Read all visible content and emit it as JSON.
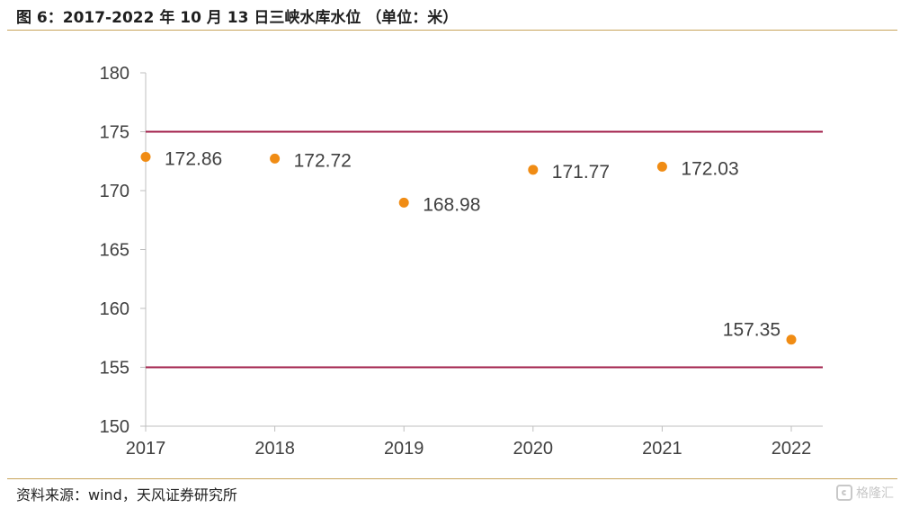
{
  "header": {
    "title": "图 6：2017-2022 年 10 月 13 日三峡水库水位 （单位：米）"
  },
  "footer": {
    "source": "资料来源：wind，天风证券研究所"
  },
  "watermark": {
    "text": "格隆汇"
  },
  "colors": {
    "accent_rule": "#c8a45a",
    "point": "#f08c14",
    "reference_line": "#a11f4a",
    "axis": "#bfbfbf",
    "text": "#404040"
  },
  "chart_data": {
    "type": "scatter",
    "title": "",
    "xlabel": "",
    "ylabel": "",
    "x": [
      "2017",
      "2018",
      "2019",
      "2020",
      "2021",
      "2022"
    ],
    "values": [
      172.86,
      172.72,
      168.98,
      171.77,
      172.03,
      157.35
    ],
    "data_labels": [
      "172.86",
      "172.72",
      "168.98",
      "171.77",
      "172.03",
      "157.35"
    ],
    "ylim": [
      150,
      180
    ],
    "yticks": [
      "150",
      "155",
      "160",
      "165",
      "170",
      "175",
      "180"
    ],
    "reference_lines": [
      175,
      155
    ],
    "grid": false,
    "legend": "none"
  }
}
